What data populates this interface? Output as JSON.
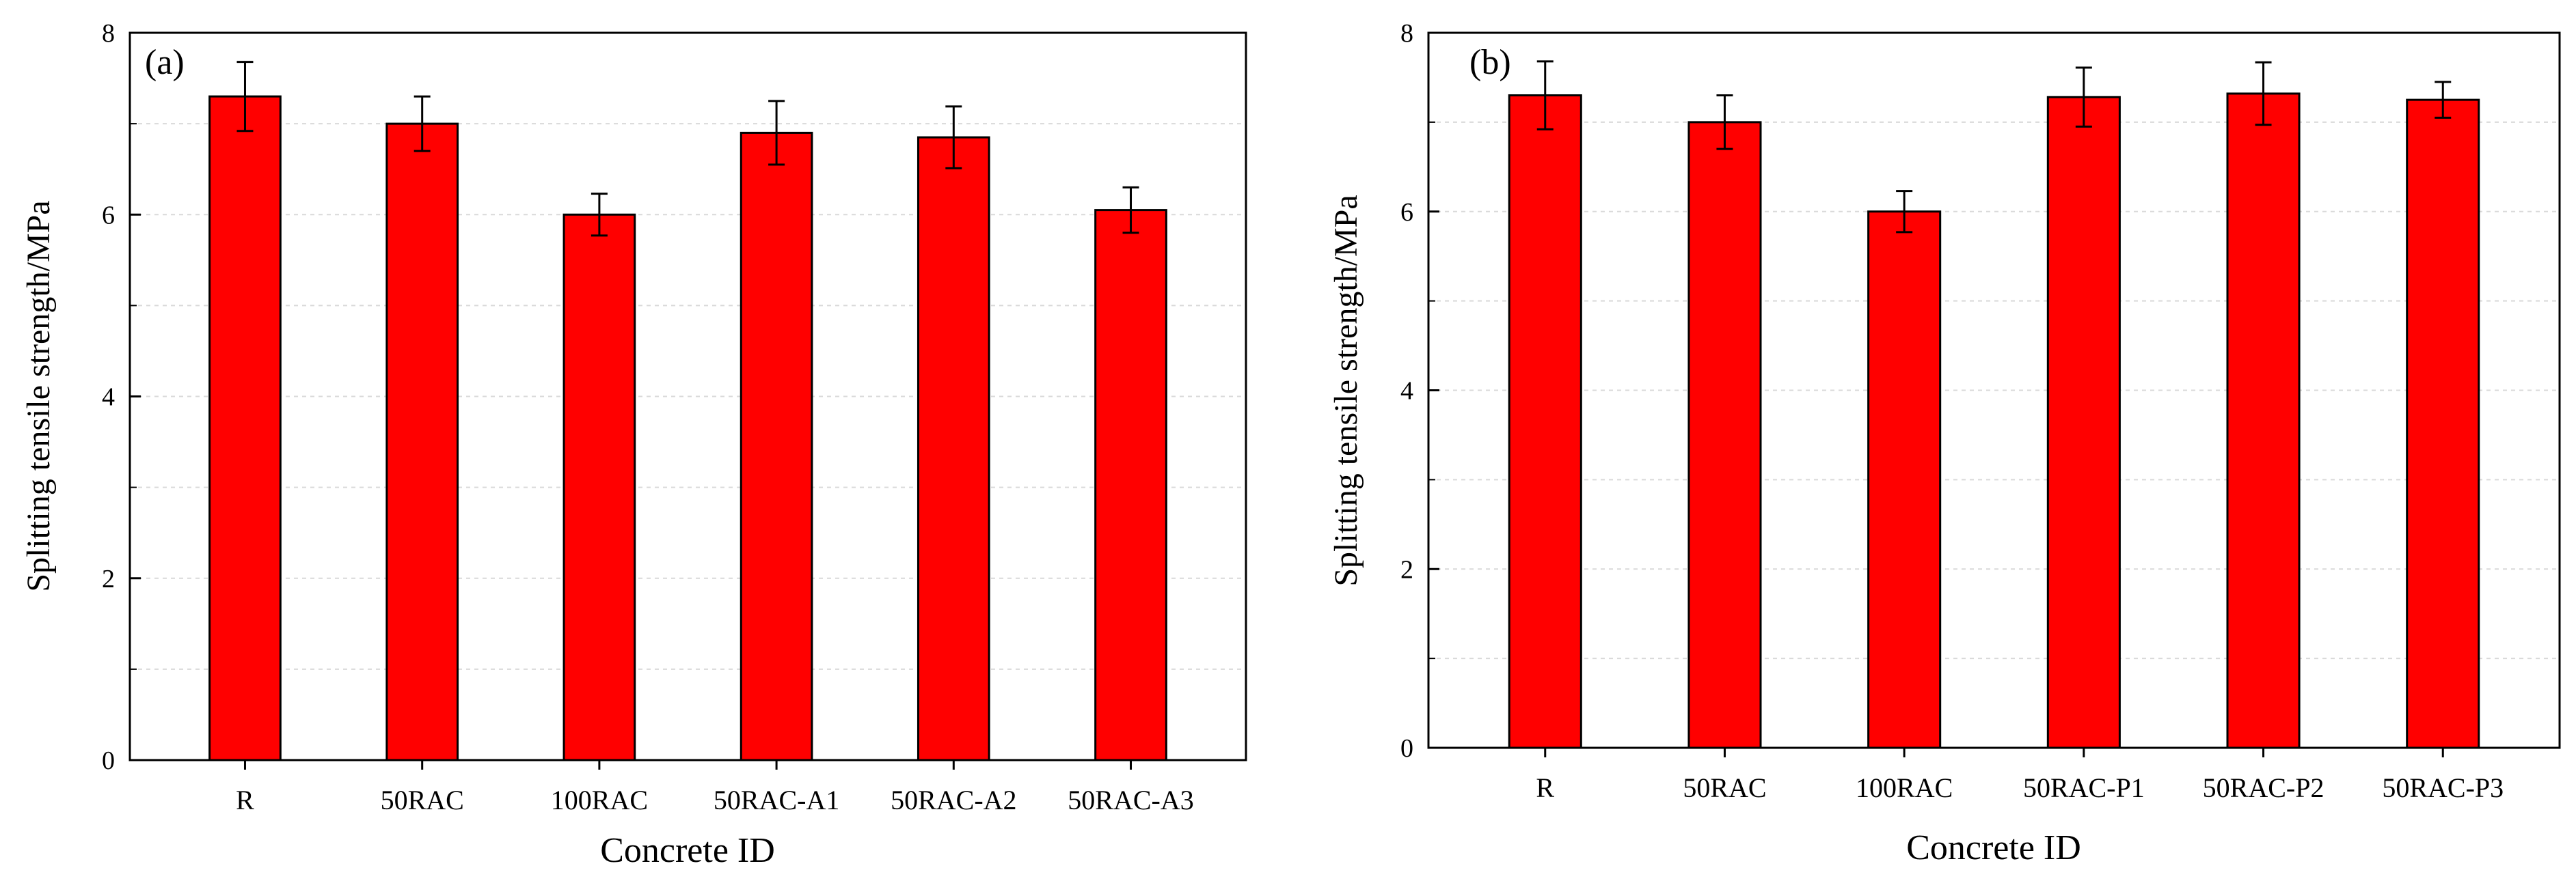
{
  "colors": {
    "bar": "#ff0000",
    "bar_edge": "#000000"
  },
  "chart_data": [
    {
      "type": "bar",
      "panel_label": "(a)",
      "categories": [
        "R",
        "50RAC",
        "100RAC",
        "50RAC-A1",
        "50RAC-A2",
        "50RAC-A3"
      ],
      "values": [
        7.3,
        7.0,
        6.0,
        6.9,
        6.85,
        6.05
      ],
      "errors": [
        0.38,
        0.3,
        0.23,
        0.35,
        0.34,
        0.25
      ],
      "xlabel": "Concrete ID",
      "ylabel": "Splitting tensile strength/MPa",
      "ylim": [
        0,
        8
      ],
      "yticks": [
        "0",
        "2",
        "4",
        "6",
        "8"
      ],
      "grid": true
    },
    {
      "type": "bar",
      "panel_label": "(b)",
      "categories": [
        "R",
        "50RAC",
        "100RAC",
        "50RAC-P1",
        "50RAC-P2",
        "50RAC-P3"
      ],
      "values": [
        7.3,
        7.0,
        6.0,
        7.28,
        7.32,
        7.25
      ],
      "errors": [
        0.38,
        0.3,
        0.23,
        0.33,
        0.35,
        0.2
      ],
      "xlabel": "Concrete ID",
      "ylabel": "Splitting tensile strength/MPa",
      "ylim": [
        0,
        8
      ],
      "yticks": [
        "0",
        "2",
        "4",
        "6",
        "8"
      ],
      "grid": true
    }
  ]
}
